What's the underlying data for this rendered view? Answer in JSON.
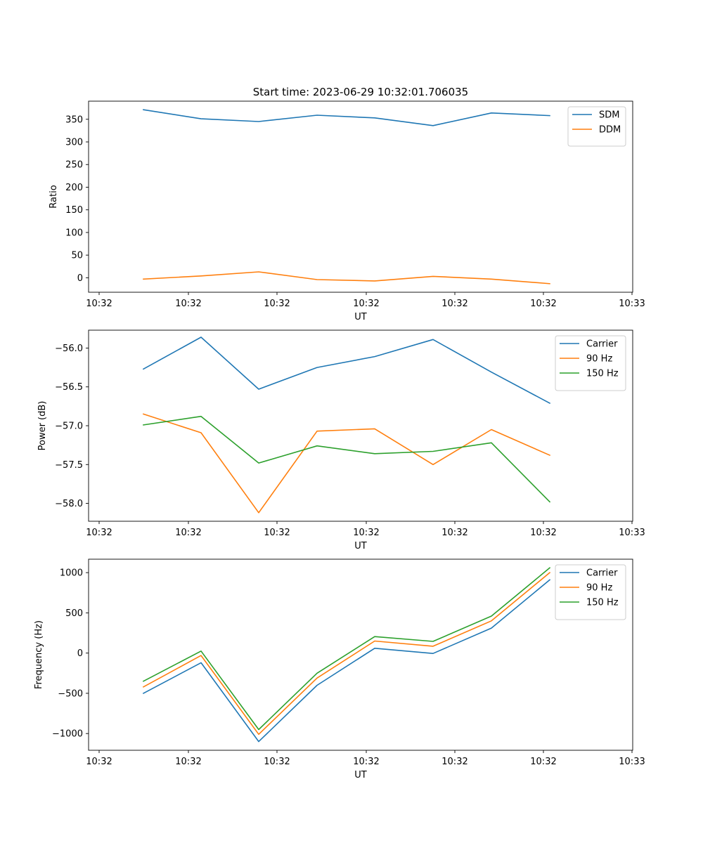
{
  "chart_data": [
    {
      "type": "line",
      "title": "Start time: 2023-06-29 10:32:01.706035",
      "xlabel": "UT",
      "ylabel": "Ratio",
      "x_tick_labels": [
        "10:32",
        "10:32",
        "10:32",
        "10:32",
        "10:32",
        "10:32",
        "10:33"
      ],
      "y_ticks": [
        0,
        50,
        100,
        150,
        200,
        250,
        300,
        350
      ],
      "ylim": [
        -32,
        390
      ],
      "grid": false,
      "legend": "top-right",
      "series": [
        {
          "name": "SDM",
          "color": "#1f77b4",
          "values": [
            371,
            351,
            345,
            359,
            353,
            336,
            364,
            358
          ]
        },
        {
          "name": "DDM",
          "color": "#ff7f0e",
          "values": [
            -3,
            4,
            13,
            -4,
            -7,
            3,
            -3,
            -13
          ]
        }
      ]
    },
    {
      "type": "line",
      "xlabel": "UT",
      "ylabel": "Power (dB)",
      "x_tick_labels": [
        "10:32",
        "10:32",
        "10:32",
        "10:32",
        "10:32",
        "10:32",
        "10:33"
      ],
      "y_ticks": [
        -58.0,
        -57.5,
        -57.0,
        -56.5,
        -56.0
      ],
      "y_tick_labels": [
        "−58.0",
        "−57.5",
        "−57.0",
        "−56.5",
        "−56.0"
      ],
      "ylim": [
        -58.23,
        -55.77
      ],
      "grid": false,
      "legend": "top-right",
      "series": [
        {
          "name": "Carrier",
          "color": "#1f77b4",
          "values": [
            -56.27,
            -55.86,
            -56.53,
            -56.25,
            -56.11,
            -55.89,
            -56.31,
            -56.71
          ]
        },
        {
          "name": "90 Hz",
          "color": "#ff7f0e",
          "values": [
            -56.85,
            -57.09,
            -58.12,
            -57.07,
            -57.04,
            -57.5,
            -57.05,
            -57.38
          ]
        },
        {
          "name": "150 Hz",
          "color": "#2ca02c",
          "values": [
            -56.99,
            -56.88,
            -57.48,
            -57.26,
            -57.36,
            -57.33,
            -57.22,
            -57.98
          ]
        }
      ]
    },
    {
      "type": "line",
      "xlabel": "UT",
      "ylabel": "Frequency (Hz)",
      "x_tick_labels": [
        "10:32",
        "10:32",
        "10:32",
        "10:32",
        "10:32",
        "10:32",
        "10:33"
      ],
      "y_ticks": [
        -1000,
        -500,
        0,
        500,
        1000
      ],
      "y_tick_labels": [
        "−1000",
        "−500",
        "0",
        "500",
        "1000"
      ],
      "ylim": [
        -1208,
        1167
      ],
      "grid": false,
      "legend": "top-right",
      "series": [
        {
          "name": "Carrier",
          "color": "#1f77b4",
          "values": [
            -500,
            -120,
            -1100,
            -400,
            60,
            -5,
            310,
            910
          ]
        },
        {
          "name": "90 Hz",
          "color": "#ff7f0e",
          "values": [
            -420,
            -30,
            -1010,
            -310,
            150,
            85,
            400,
            1000
          ]
        },
        {
          "name": "150 Hz",
          "color": "#2ca02c",
          "values": [
            -350,
            25,
            -950,
            -250,
            205,
            145,
            460,
            1060
          ]
        }
      ]
    }
  ]
}
